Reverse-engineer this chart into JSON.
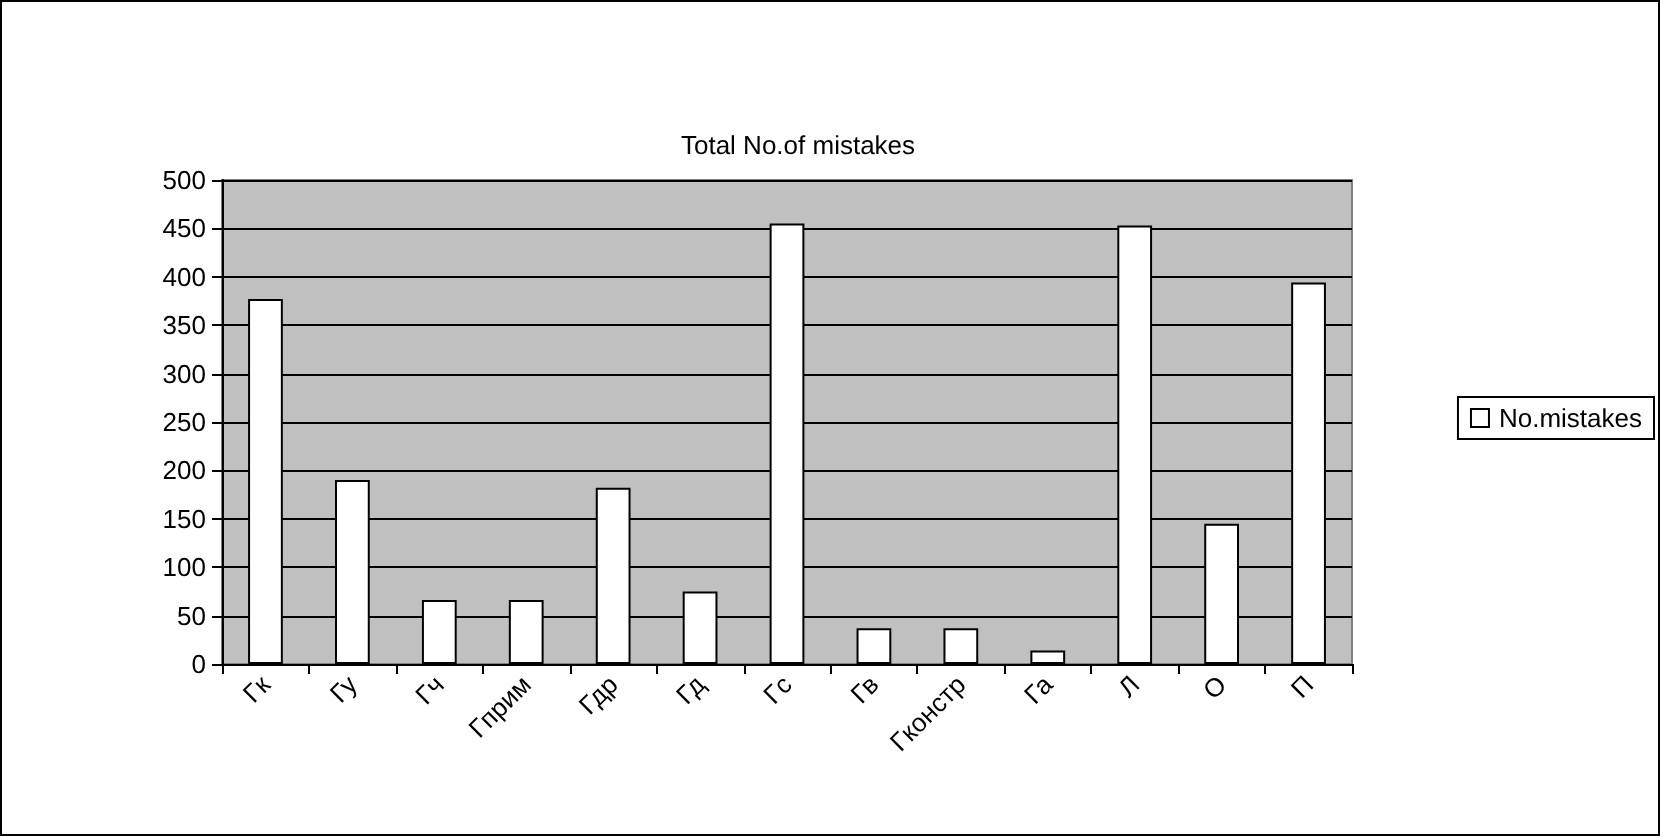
{
  "chart_data": {
    "type": "bar",
    "title": "Total No.of mistakes",
    "categories": [
      "Гк",
      "Гу",
      "Гч",
      "Гприм",
      "Гдр",
      "Гд",
      "Гс",
      "Гв",
      "Гконстр",
      "Га",
      "Л",
      "О",
      "П"
    ],
    "series": [
      {
        "name": "No.mistakes",
        "color": "#ffffff",
        "values": [
          377,
          190,
          66,
          66,
          182,
          75,
          455,
          37,
          37,
          14,
          453,
          145,
          394
        ]
      }
    ],
    "ylim": [
      0,
      500
    ],
    "yticks": [
      0,
      50,
      100,
      150,
      200,
      250,
      300,
      350,
      400,
      450,
      500
    ],
    "grid": "y",
    "legend": "right"
  }
}
